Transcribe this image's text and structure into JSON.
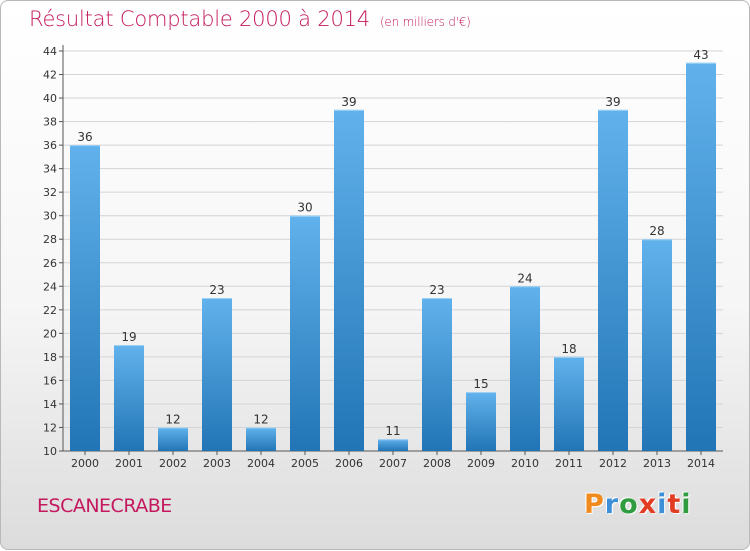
{
  "header": {
    "title": "Résultat Comptable 2000 à 2014",
    "subtitle": "(en milliers d'€)"
  },
  "footer": {
    "commune": "ESCANECRABE",
    "logo_letters": [
      "P",
      "r",
      "o",
      "x",
      "i",
      "t",
      "i"
    ],
    "logo_colors": [
      "#f08a1c",
      "#3d8fd8",
      "#2e9c3f",
      "#e23c23",
      "#3d8fd8",
      "#e23c23",
      "#2e9c3f"
    ]
  },
  "colors": {
    "bar_top": "#61b2ec",
    "bar_bottom": "#2275b5",
    "text": "#c4195e",
    "grid": "#d4d4d4"
  },
  "chart_data": {
    "type": "bar",
    "title": "Résultat Comptable 2000 à 2014",
    "subtitle": "(en milliers d'€)",
    "categories": [
      "2000",
      "2001",
      "2002",
      "2003",
      "2004",
      "2005",
      "2006",
      "2007",
      "2008",
      "2009",
      "2010",
      "2011",
      "2012",
      "2013",
      "2014"
    ],
    "values": [
      36,
      19,
      12,
      23,
      12,
      30,
      39,
      11,
      23,
      15,
      24,
      18,
      39,
      28,
      43
    ],
    "ylim": [
      10,
      44
    ],
    "yticks": [
      10,
      12,
      14,
      16,
      18,
      20,
      22,
      24,
      26,
      28,
      30,
      32,
      34,
      36,
      38,
      40,
      42,
      44
    ],
    "grid": true,
    "legend": false,
    "xlabel": "",
    "ylabel": ""
  }
}
